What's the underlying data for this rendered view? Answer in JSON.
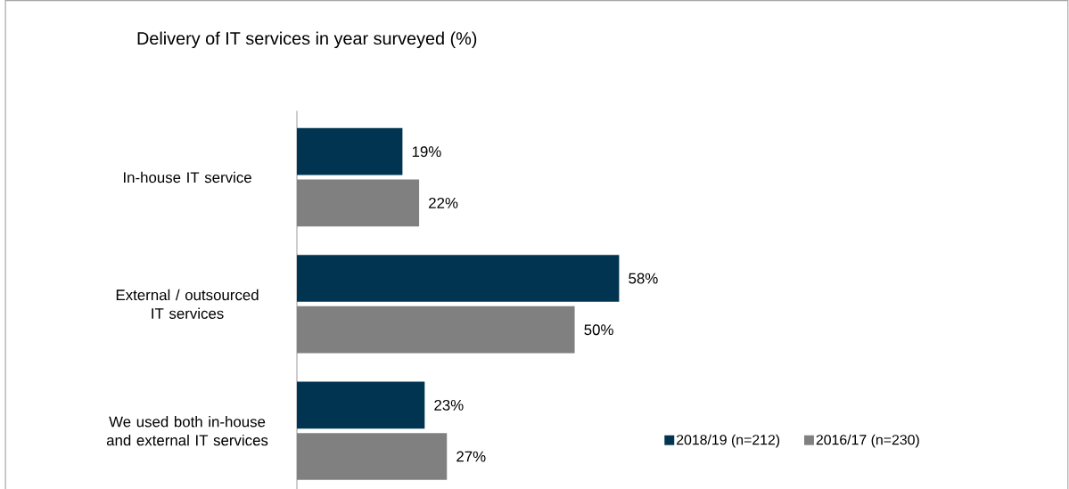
{
  "chart_data": {
    "type": "bar",
    "orientation": "horizontal",
    "title": "Delivery of IT services in year surveyed (%)",
    "categories": [
      "In-house IT service",
      "External / outsourced IT services",
      "We used both in-house and external IT services"
    ],
    "series": [
      {
        "name": "2018/19 (n=212)",
        "color": "#003450",
        "values": [
          19,
          58,
          23
        ],
        "value_labels": [
          "19%",
          "58%",
          "23%"
        ]
      },
      {
        "name": "2016/17 (n=230)",
        "color": "#808080",
        "values": [
          22,
          50,
          27
        ],
        "value_labels": [
          "22%",
          "50%",
          "27%"
        ]
      }
    ],
    "legend": "bottom right"
  }
}
